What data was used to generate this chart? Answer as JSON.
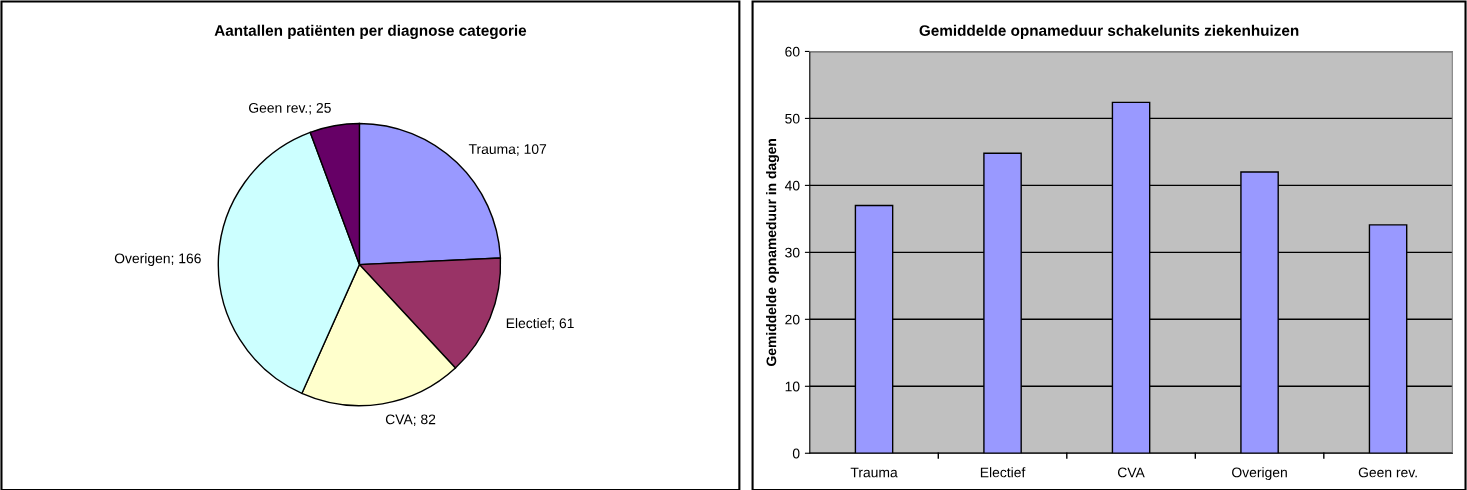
{
  "chart_data": [
    {
      "type": "pie",
      "title": "Aantallen patiënten per diagnose categorie",
      "categories": [
        "Trauma",
        "Electief",
        "CVA",
        "Overigen",
        "Geen rev."
      ],
      "values": [
        107,
        61,
        82,
        166,
        25
      ],
      "colors": [
        "#9999ff",
        "#993366",
        "#ffffcc",
        "#ccffff",
        "#660066"
      ],
      "value_labels": [
        "; 107",
        "; 61",
        "; 82",
        "; 166",
        "; 25"
      ],
      "legend": false
    },
    {
      "type": "bar",
      "title": "Gemiddelde opnameduur schakelunits ziekenhuizen",
      "ylabel": "Gemiddelde opnameduur in dagen",
      "categories": [
        "Trauma",
        "Electief",
        "CVA",
        "Overigen",
        "Geen rev."
      ],
      "values": [
        37.0,
        44.8,
        52.4,
        42.0,
        34.1
      ],
      "color": "#9999ff",
      "ylim": [
        0,
        60
      ],
      "yticks": [
        0,
        10,
        20,
        30,
        40,
        50,
        60
      ],
      "grid": "y",
      "legend": false
    }
  ]
}
